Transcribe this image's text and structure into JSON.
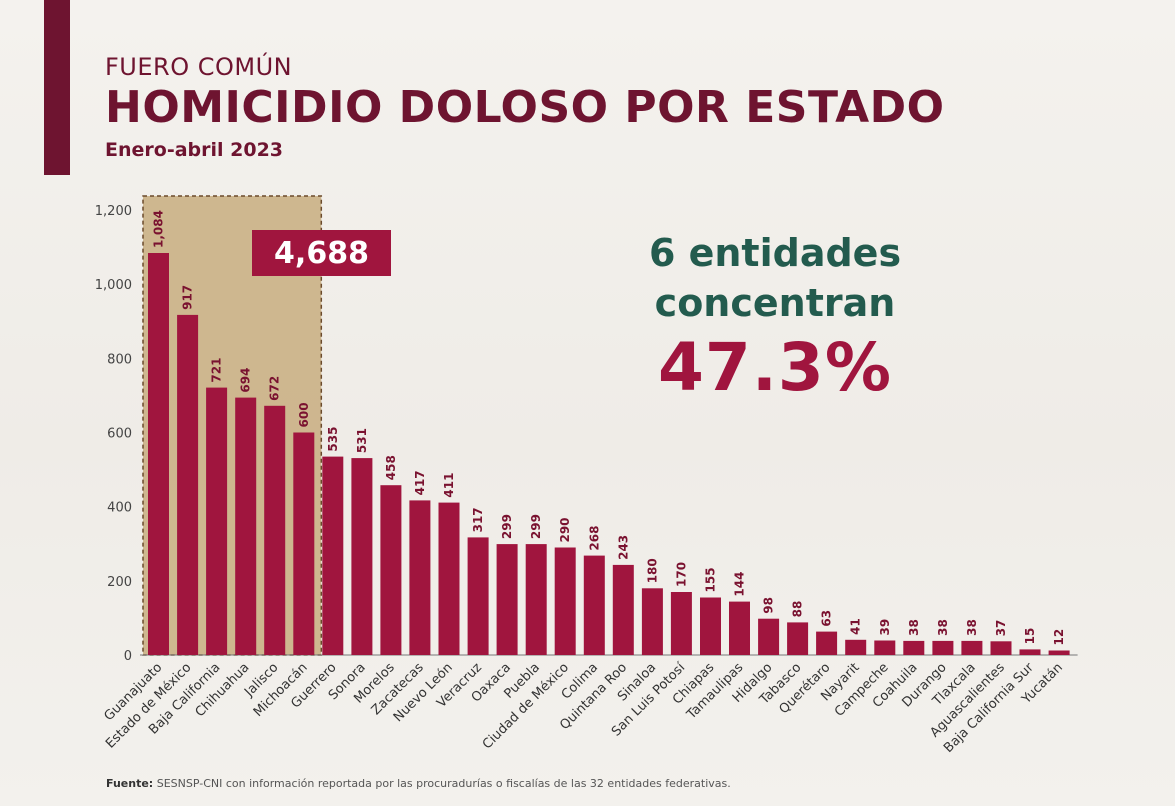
{
  "header": {
    "supertitle": "FUERO COMÚN",
    "title": "HOMICIDIO DOLOSO POR ESTADO",
    "subtitle": "Enero-abril 2023"
  },
  "highlight": {
    "total": "4,688",
    "callout_line1": "6 entidades",
    "callout_line2": "concentran",
    "callout_pct": "47.3%"
  },
  "source": {
    "label": "Fuente:",
    "text": "SESNSP-CNI con información reportada por las procuradurías o fiscalías de las 32 entidades federativas."
  },
  "colors": {
    "bar": "#a0153e",
    "highlight_fill": "#c8ad7f",
    "title": "#6e1430",
    "callout_green": "#235b4e"
  },
  "chart_data": {
    "type": "bar",
    "title": "HOMICIDIO DOLOSO POR ESTADO",
    "xlabel": "",
    "ylabel": "",
    "ylim": [
      0,
      1200
    ],
    "yticks": [
      0,
      200,
      400,
      600,
      800,
      1000,
      1200
    ],
    "ytick_labels": [
      "0",
      "200",
      "400",
      "600",
      "800",
      "1,000",
      "1,200"
    ],
    "grid": false,
    "highlighted_count": 6,
    "categories": [
      "Guanajuato",
      "Estado de México",
      "Baja California",
      "Chihuahua",
      "Jalisco",
      "Michoacán",
      "Guerrero",
      "Sonora",
      "Morelos",
      "Zacatecas",
      "Nuevo León",
      "Veracruz",
      "Oaxaca",
      "Puebla",
      "Ciudad de México",
      "Colima",
      "Quintana Roo",
      "Sinaloa",
      "San Luis Potosí",
      "Chiapas",
      "Tamaulipas",
      "Hidalgo",
      "Tabasco",
      "Querétaro",
      "Nayarit",
      "Campeche",
      "Coahuila",
      "Durango",
      "Tlaxcala",
      "Aguascalientes",
      "Baja California Sur",
      "Yucatán"
    ],
    "values": [
      1084,
      917,
      721,
      694,
      672,
      600,
      535,
      531,
      458,
      417,
      411,
      317,
      299,
      299,
      290,
      268,
      243,
      180,
      170,
      155,
      144,
      98,
      88,
      63,
      41,
      39,
      38,
      38,
      38,
      37,
      15,
      12
    ],
    "value_labels": [
      "1,084",
      "917",
      "721",
      "694",
      "672",
      "600",
      "535",
      "531",
      "458",
      "417",
      "411",
      "317",
      "299",
      "299",
      "290",
      "268",
      "243",
      "180",
      "170",
      "155",
      "144",
      "98",
      "88",
      "63",
      "41",
      "39",
      "38",
      "38",
      "38",
      "37",
      "15",
      "12"
    ]
  }
}
